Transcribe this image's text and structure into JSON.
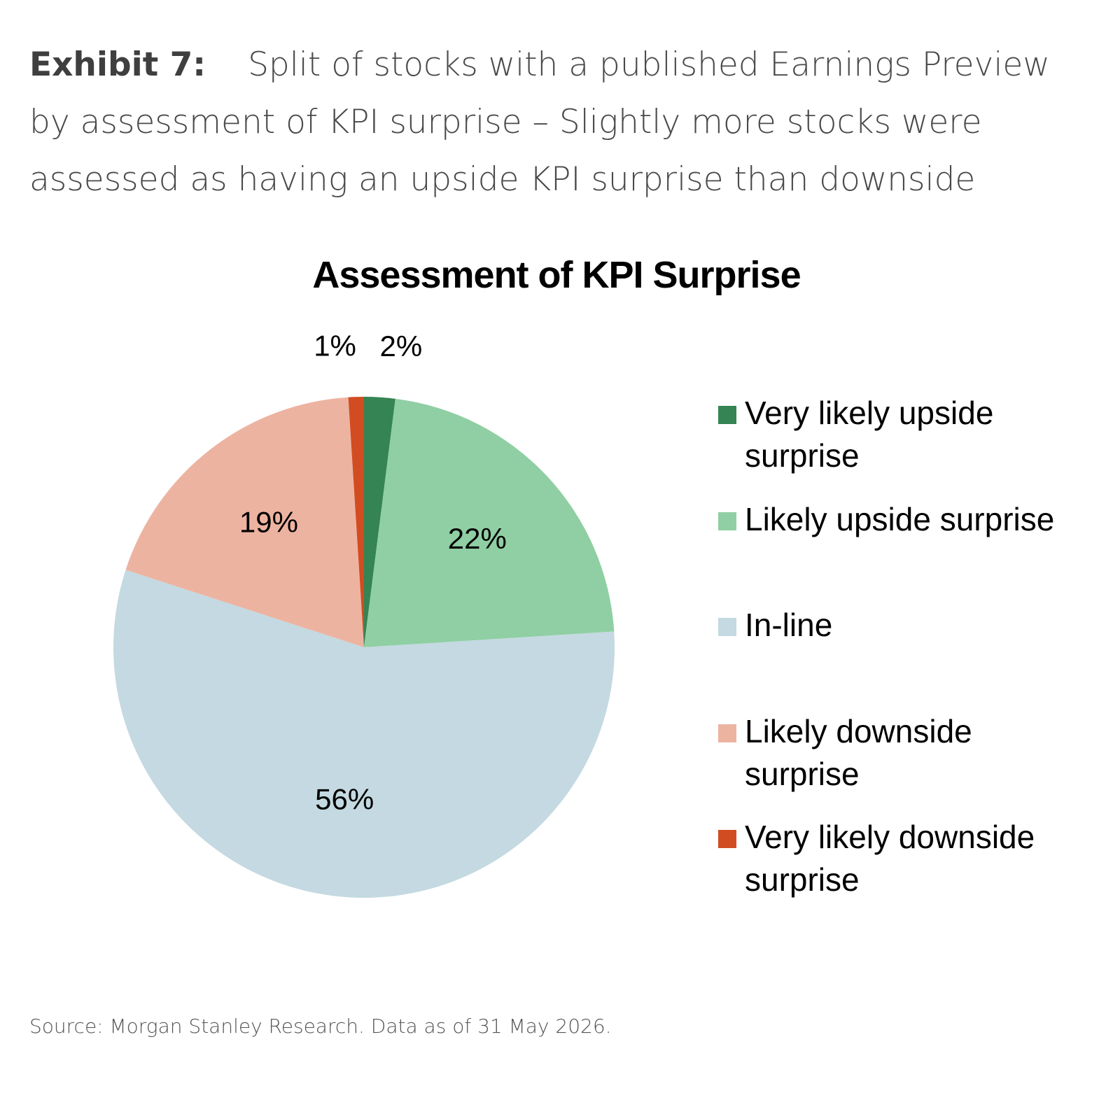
{
  "header": {
    "exhibit_label": "Exhibit 7:",
    "exhibit_title": "Split of stocks with a published Earnings Preview by assessment of KPI surprise – Slightly more stocks were assessed as having an upside KPI surprise than downside"
  },
  "footer": {
    "source": "Source: Morgan Stanley Research. Data as of 31 May 2026."
  },
  "chart_data": {
    "type": "pie",
    "title": "Assessment of KPI Surprise",
    "legend_position": "right",
    "categories": [
      "Very likely upside surprise",
      "Likely upside surprise",
      "In-line",
      "Likely downside surprise",
      "Very likely downside surprise"
    ],
    "values": [
      2,
      22,
      56,
      19,
      1
    ],
    "data_labels": [
      "2%",
      "22%",
      "56%",
      "19%",
      "1%"
    ],
    "colors": [
      "#358453",
      "#8fcfa3",
      "#c4d9e1",
      "#edb3a1",
      "#d24c22"
    ],
    "start_angle": "12 o'clock",
    "direction": "clockwise"
  }
}
